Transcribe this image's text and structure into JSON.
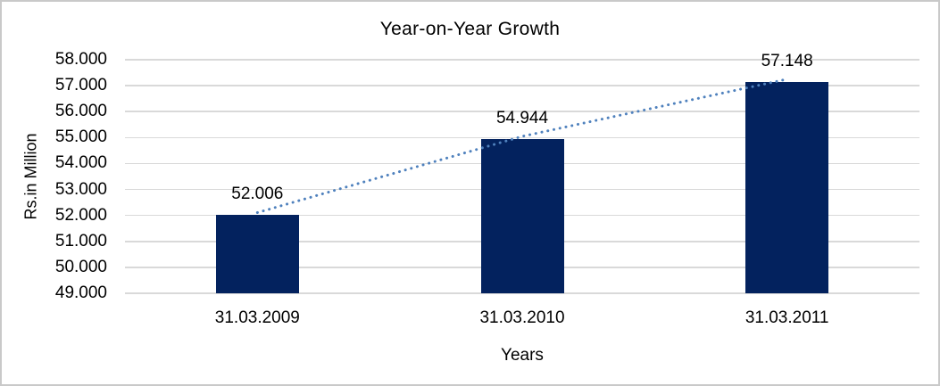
{
  "chart_data": {
    "type": "bar",
    "title": "Year-on-Year Growth",
    "xlabel": "Years",
    "ylabel": "Rs.in Million",
    "categories": [
      "31.03.2009",
      "31.03.2010",
      "31.03.2011"
    ],
    "values": [
      52.006,
      54.944,
      57.148
    ],
    "value_labels": [
      "52.006",
      "54.944",
      "57.148"
    ],
    "y_ticks": [
      "49.000",
      "50.000",
      "51.000",
      "52.000",
      "53.000",
      "54.000",
      "55.000",
      "56.000",
      "57.000",
      "58.000"
    ],
    "ylim": [
      49.0,
      58.0
    ],
    "grid": true,
    "legend": "none",
    "trendline": {
      "style": "dotted",
      "through": "bar-tops"
    },
    "colors": {
      "bar": "#03225e",
      "trendline": "#4f81bd",
      "gridline": "#d9d9d9",
      "text": "#000000",
      "frame": "#c9c9c9",
      "background": "#ffffff"
    }
  }
}
